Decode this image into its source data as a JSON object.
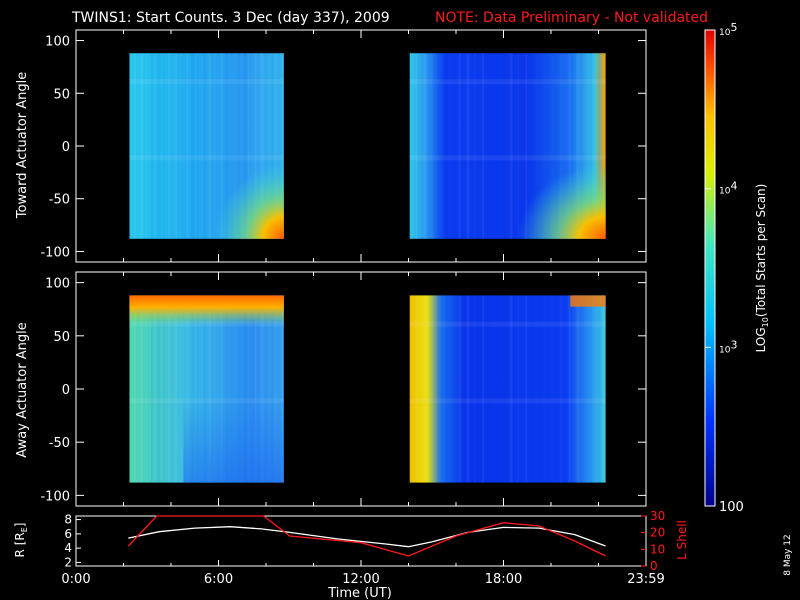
{
  "header": {
    "title": "TWINS1: Start Counts.  3 Dec (day 337), 2009",
    "note": "NOTE: Data Preliminary - Not validated"
  },
  "side_note": "8 May 12",
  "colors": {
    "background": "#000000",
    "axes": "#ffffff",
    "note": "#ff1a1a",
    "r_line": "#ffffff",
    "l_shell_line": "#ff1a1a"
  },
  "chart_data": [
    {
      "type": "heatmap",
      "panel": "toward",
      "ylabel": "Toward Actuator Angle",
      "ylim": [
        -110,
        110
      ],
      "yticks": [
        100,
        50,
        0,
        -50,
        -100
      ],
      "xlim_hours": [
        0,
        24
      ],
      "data_blocks_hours": [
        [
          2.25,
          8.75
        ],
        [
          14.05,
          22.3
        ]
      ],
      "angle_range": [
        -88,
        88
      ],
      "colormap": "log10 counts 100 to 100000, blue-cyan-yellow-red"
    },
    {
      "type": "heatmap",
      "panel": "away",
      "ylabel": "Away Actuator Angle",
      "ylim": [
        -110,
        110
      ],
      "yticks": [
        100,
        50,
        0,
        -50,
        -100
      ],
      "xlim_hours": [
        0,
        24
      ],
      "data_blocks_hours": [
        [
          2.25,
          8.75
        ],
        [
          14.05,
          22.3
        ]
      ],
      "angle_range": [
        -88,
        88
      ],
      "colormap": "log10 counts 100 to 100000, blue-cyan-yellow-red"
    },
    {
      "type": "line",
      "panel": "orbit",
      "ylabel_left": "R [R",
      "ylabel_left_sub": "E",
      "ylabel_left_end": "]",
      "ylabel_right": "L Shell",
      "yticks_left": [
        8,
        6,
        4,
        2
      ],
      "yticks_right": [
        30,
        20,
        10,
        0
      ],
      "ylim_left": [
        1.5,
        8.5
      ],
      "ylim_right": [
        0,
        30
      ],
      "series": [
        {
          "axis": "left",
          "x": [
            2.2,
            3.5,
            5.0,
            6.5,
            7.8,
            9.0,
            11.0,
            13.0,
            14.0,
            15.0,
            16.5,
            18.0,
            19.5,
            21.0,
            22.3
          ],
          "values": [
            5.4,
            6.3,
            6.8,
            7.0,
            6.7,
            6.2,
            5.3,
            4.6,
            4.2,
            4.9,
            6.2,
            6.9,
            6.8,
            5.9,
            4.3
          ]
        },
        {
          "axis": "right",
          "x": [
            2.2,
            3.4,
            3.7,
            7.5,
            7.9,
            9.0,
            12.0,
            14.0,
            16.0,
            18.0,
            19.5,
            21.0,
            22.3
          ],
          "values": [
            12,
            30,
            31,
            31,
            30,
            18,
            14,
            6,
            18,
            26,
            24,
            15,
            6
          ]
        }
      ]
    }
  ],
  "x_axis": {
    "label": "Time (UT)",
    "tick_labels": [
      "0:00",
      "6:00",
      "12:00",
      "18:00",
      "23:59"
    ],
    "tick_hours": [
      0,
      6,
      12,
      18,
      24
    ]
  },
  "colorbar": {
    "label_main": "LOG",
    "label_sub": "10",
    "label_end": "(Total Starts per Scan)",
    "range": [
      100,
      100000
    ],
    "tick_labels": [
      {
        "base": "10",
        "exp": "5",
        "value": 100000
      },
      {
        "base": "10",
        "exp": "4",
        "value": 10000
      },
      {
        "base": "10",
        "exp": "3",
        "value": 1000
      },
      {
        "plain": "100",
        "value": 100
      }
    ]
  }
}
